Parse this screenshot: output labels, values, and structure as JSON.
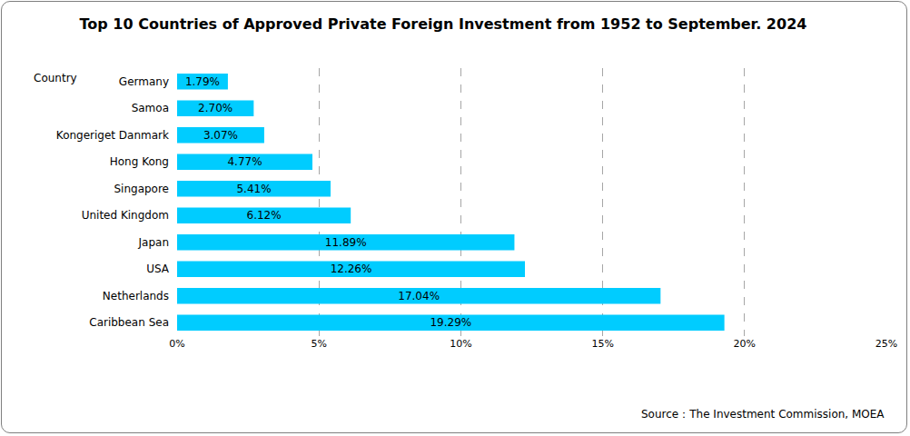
{
  "chart_data": {
    "type": "bar",
    "title": "Top 10 Countries of Approved Private Foreign Investment from 1952 to September. 2024",
    "ylabel": "Country",
    "source": "Source：The Investment Commission, MOEA",
    "orientation": "horizontal",
    "categories": [
      "Germany",
      "Samoa",
      "Kongeriget Danmark",
      "Hong Kong",
      "Singapore",
      "United Kingdom",
      "Japan",
      "USA",
      "Netherlands",
      "Caribbean Sea"
    ],
    "values": [
      1.79,
      2.7,
      3.07,
      4.77,
      5.41,
      6.12,
      11.89,
      12.26,
      17.04,
      19.29
    ],
    "value_labels": [
      "1.79%",
      "2.70%",
      "3.07%",
      "4.77%",
      "5.41%",
      "6.12%",
      "11.89%",
      "12.26%",
      "17.04%",
      "19.29%"
    ],
    "data_labels": true,
    "color": "#00ccff",
    "xlim": [
      0,
      25
    ],
    "xticks": [
      {
        "value": 0,
        "label": "0%"
      },
      {
        "value": 5,
        "label": "5%"
      },
      {
        "value": 10,
        "label": "10%"
      },
      {
        "value": 15,
        "label": "15%"
      },
      {
        "value": 20,
        "label": "20%"
      },
      {
        "value": 25,
        "label": "25%"
      }
    ],
    "grid": true
  }
}
